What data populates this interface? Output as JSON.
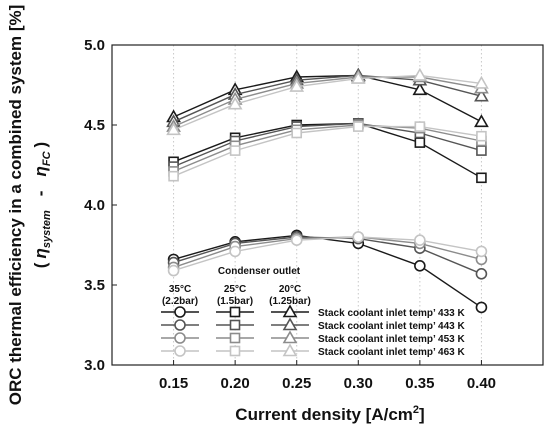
{
  "chart_data": {
    "type": "line",
    "ylabel": "ORC thermal efficiency in a combined system [%]",
    "ylabel_sub": {
      "open": "(",
      "eta1": "η",
      "sub1": "system",
      "minus": "-",
      "eta2": "η",
      "sub2": "FC",
      "close": ")"
    },
    "xlabel": "Current density [A/cm",
    "xlabel_sup": "2",
    "xlabel_end": "]",
    "x": [
      0.15,
      0.2,
      0.25,
      0.3,
      0.35,
      0.4
    ],
    "x_tick_labels": [
      "0.15",
      "0.20",
      "0.25",
      "0.30",
      "0.35",
      "0.40"
    ],
    "xlim": [
      0.1,
      0.45
    ],
    "ylim": [
      3.0,
      5.0
    ],
    "y_ticks": [
      3.0,
      3.5,
      4.0,
      4.5,
      5.0
    ],
    "y_tick_labels": [
      "3.0",
      "3.5",
      "4.0",
      "4.5",
      "5.0"
    ],
    "grid": "vertical dotted",
    "legend": {
      "title": "Condenser outlet",
      "columns": [
        {
          "temp": "35°C",
          "pressure": "(2.2bar)",
          "marker": "circle"
        },
        {
          "temp": "25°C",
          "pressure": "(1.5bar)",
          "marker": "square"
        },
        {
          "temp": "20°C",
          "pressure": "(1.25bar)",
          "marker": "triangle"
        }
      ],
      "rows": [
        {
          "label": "Stack coolant inlet temp’ 433 K",
          "color": "#1a1a1a"
        },
        {
          "label": "Stack coolant inlet temp’ 443 K",
          "color": "#555555"
        },
        {
          "label": "Stack coolant inlet temp’ 453 K",
          "color": "#8c8c8c"
        },
        {
          "label": "Stack coolant inlet temp’ 463 K",
          "color": "#c4c4c4"
        }
      ],
      "position": "bottom-center"
    },
    "series": [
      {
        "marker": "triangle",
        "color": "#1a1a1a",
        "values": [
          4.55,
          4.72,
          4.8,
          4.81,
          4.72,
          4.52
        ]
      },
      {
        "marker": "triangle",
        "color": "#555555",
        "values": [
          4.52,
          4.69,
          4.78,
          4.81,
          4.78,
          4.68
        ]
      },
      {
        "marker": "triangle",
        "color": "#8c8c8c",
        "values": [
          4.49,
          4.66,
          4.76,
          4.8,
          4.8,
          4.73
        ]
      },
      {
        "marker": "triangle",
        "color": "#c4c4c4",
        "values": [
          4.47,
          4.63,
          4.74,
          4.79,
          4.81,
          4.76
        ]
      },
      {
        "marker": "square",
        "color": "#1a1a1a",
        "values": [
          4.27,
          4.42,
          4.5,
          4.51,
          4.39,
          4.17
        ]
      },
      {
        "marker": "square",
        "color": "#555555",
        "values": [
          4.24,
          4.4,
          4.49,
          4.51,
          4.45,
          4.34
        ]
      },
      {
        "marker": "square",
        "color": "#8c8c8c",
        "values": [
          4.21,
          4.37,
          4.47,
          4.5,
          4.48,
          4.4
        ]
      },
      {
        "marker": "square",
        "color": "#c4c4c4",
        "values": [
          4.18,
          4.34,
          4.45,
          4.49,
          4.49,
          4.43
        ]
      },
      {
        "marker": "circle",
        "color": "#1a1a1a",
        "values": [
          3.66,
          3.77,
          3.81,
          3.76,
          3.62,
          3.36
        ]
      },
      {
        "marker": "circle",
        "color": "#555555",
        "values": [
          3.64,
          3.76,
          3.8,
          3.79,
          3.73,
          3.57
        ]
      },
      {
        "marker": "circle",
        "color": "#8c8c8c",
        "values": [
          3.61,
          3.74,
          3.79,
          3.8,
          3.76,
          3.66
        ]
      },
      {
        "marker": "circle",
        "color": "#c4c4c4",
        "values": [
          3.59,
          3.71,
          3.78,
          3.8,
          3.78,
          3.71
        ]
      }
    ]
  }
}
